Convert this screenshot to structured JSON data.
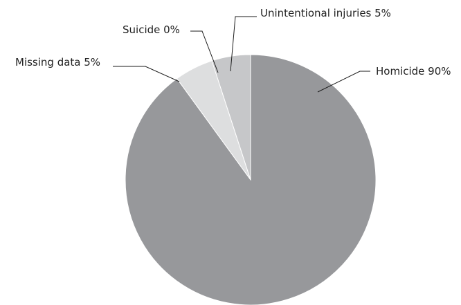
{
  "chart_data": {
    "type": "pie",
    "start_angle_deg": 0,
    "direction": "clockwise",
    "slices": [
      {
        "label": "Homicide 90%",
        "category": "Homicide",
        "value": 90,
        "color": "#97989b"
      },
      {
        "label": "Missing data 5%",
        "category": "Missing data",
        "value": 5,
        "color": "#dddedf"
      },
      {
        "label": "Suicide 0%",
        "category": "Suicide",
        "value": 0,
        "color": "#c6c7c9"
      },
      {
        "label": "Unintentional injuries 5%",
        "category": "Unintentional injuries",
        "value": 5,
        "color": "#c6c7c9"
      }
    ]
  }
}
